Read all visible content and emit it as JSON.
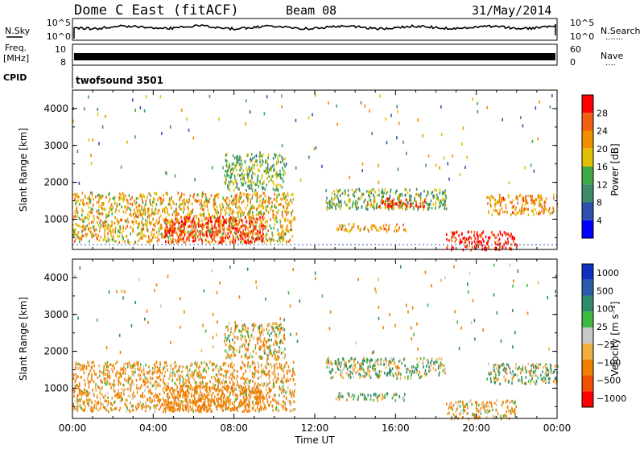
{
  "header": {
    "title": "Dome C East (fitACF)",
    "beam": "Beam 08",
    "date": "31/May/2014"
  },
  "params": {
    "nsky_label": "N.Sky",
    "nsearch_label": "N.Search",
    "nsearch_dots": "·······",
    "freq_label_1": "Freq.",
    "freq_label_2": "[MHz]",
    "nave_label": "Nave",
    "nave_dots": "····",
    "cpid_label": "CPID",
    "cpid_value": "twofsound 3501",
    "noise_ticks_left": [
      "10^5",
      "10^0"
    ],
    "noise_ticks_right": [
      "10^5",
      "10^0"
    ],
    "freq_ticks": [
      "10",
      "8"
    ],
    "nave_ticks": [
      "60",
      "0"
    ]
  },
  "colors": {
    "power_scale": [
      "#0000ff",
      "#3050b0",
      "#3f8a6a",
      "#3ea848",
      "#e0c000",
      "#f09000",
      "#f06010",
      "#ff0000"
    ],
    "velocity_scale": [
      "#ff0000",
      "#f05000",
      "#f08000",
      "#f0b040",
      "#c8c8c8",
      "#40b840",
      "#2f8a6a",
      "#2b5aa8",
      "#1030c0"
    ]
  },
  "chart_data": [
    {
      "type": "heatmap",
      "panel": "power",
      "ylabel": "Slant Range [km]",
      "xlabel": "Time UT",
      "yticks": [
        "4000",
        "3000",
        "2000",
        "1000"
      ],
      "xticks": [
        "00:00",
        "04:00",
        "08:00",
        "12:00",
        "16:00",
        "20:00",
        "00:00"
      ],
      "ylim": [
        180,
        4500
      ],
      "xlim_hours": [
        0,
        24
      ],
      "colorbar_label": "Power [dB]",
      "colorbar_ticks": [
        "28",
        "24",
        "20",
        "16",
        "12",
        "8",
        "4"
      ],
      "colorbar_range": [
        0,
        32
      ],
      "patches": [
        {
          "t0": 0.0,
          "t1": 11.0,
          "r0": 400,
          "r1": 1750,
          "v": 20
        },
        {
          "t0": 4.5,
          "t1": 9.5,
          "r0": 400,
          "r1": 1100,
          "v": 30
        },
        {
          "t0": 7.5,
          "t1": 10.5,
          "r0": 1800,
          "r1": 2800,
          "v": 14
        },
        {
          "t0": 12.5,
          "t1": 18.5,
          "r0": 1300,
          "r1": 1850,
          "v": 14
        },
        {
          "t0": 14.5,
          "t1": 17.5,
          "r0": 1350,
          "r1": 1600,
          "v": 26
        },
        {
          "t0": 13.0,
          "t1": 16.5,
          "r0": 700,
          "r1": 900,
          "v": 22
        },
        {
          "t0": 18.5,
          "t1": 22.0,
          "r0": 200,
          "r1": 700,
          "v": 30
        },
        {
          "t0": 20.5,
          "t1": 24.0,
          "r0": 1150,
          "r1": 1700,
          "v": 22
        }
      ]
    },
    {
      "type": "heatmap",
      "panel": "velocity",
      "ylabel": "Slant Range [km]",
      "xlabel": "Time UT",
      "yticks": [
        "4000",
        "3000",
        "2000",
        "1000"
      ],
      "xticks": [
        "00:00",
        "04:00",
        "08:00",
        "12:00",
        "16:00",
        "20:00",
        "00:00"
      ],
      "ylim": [
        180,
        4500
      ],
      "xlim_hours": [
        0,
        24
      ],
      "colorbar_label": "Velocity [m s⁻¹]",
      "colorbar_ticks": [
        "1000",
        "500",
        "100",
        "25",
        "−25",
        "−100",
        "−500",
        "−1000"
      ],
      "patches": [
        {
          "t0": 0.0,
          "t1": 11.0,
          "r0": 400,
          "r1": 1750,
          "v": -150
        },
        {
          "t0": 4.5,
          "t1": 9.5,
          "r0": 400,
          "r1": 1100,
          "v": -300
        },
        {
          "t0": 7.5,
          "t1": 10.5,
          "r0": 1800,
          "r1": 2800,
          "v": -60
        },
        {
          "t0": 12.5,
          "t1": 18.5,
          "r0": 1300,
          "r1": 1850,
          "v": 60
        },
        {
          "t0": 13.0,
          "t1": 16.5,
          "r0": 700,
          "r1": 900,
          "v": 40
        },
        {
          "t0": 18.5,
          "t1": 22.0,
          "r0": 200,
          "r1": 700,
          "v": -150
        },
        {
          "t0": 20.5,
          "t1": 24.0,
          "r0": 1150,
          "r1": 1700,
          "v": 80
        }
      ]
    }
  ]
}
